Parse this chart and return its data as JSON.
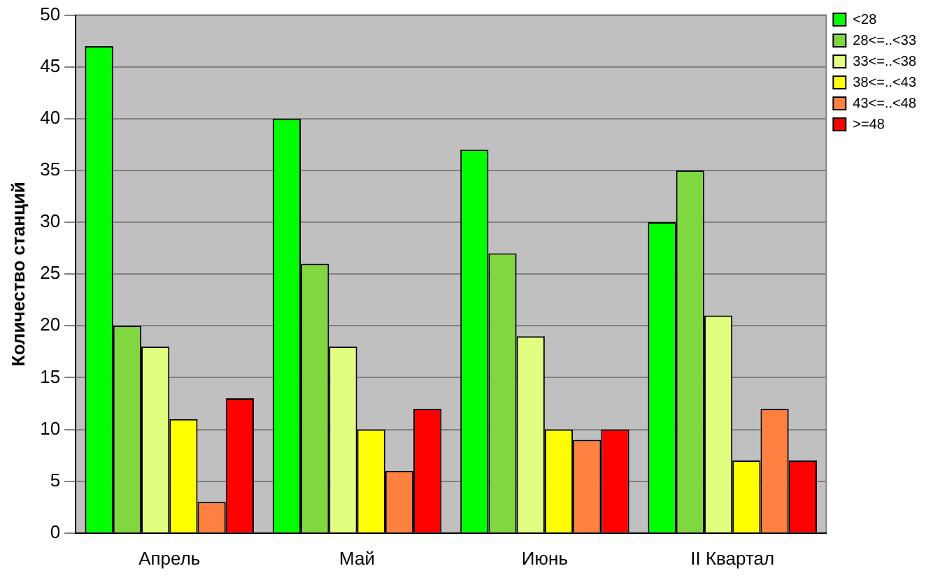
{
  "chart_data": {
    "type": "bar",
    "ylabel": "Количество станций",
    "categories": [
      "Апрель",
      "Май",
      "Июнь",
      "II Квартал"
    ],
    "series": [
      {
        "name": "<28",
        "color": "#00ff00",
        "values": [
          47,
          40,
          37,
          30
        ]
      },
      {
        "name": "28<=..<33",
        "color": "#80d840",
        "values": [
          20,
          26,
          27,
          35
        ]
      },
      {
        "name": "33<=..<38",
        "color": "#e0ff80",
        "values": [
          18,
          18,
          19,
          21
        ]
      },
      {
        "name": "38<=..<43",
        "color": "#ffff00",
        "values": [
          11,
          10,
          10,
          7
        ]
      },
      {
        "name": "43<=..<48",
        "color": "#ff8040",
        "values": [
          3,
          6,
          9,
          12
        ]
      },
      {
        "name": ">=48",
        "color": "#ff0000",
        "values": [
          13,
          12,
          10,
          7
        ]
      }
    ],
    "ylim": [
      0,
      50
    ],
    "yticks": [
      0,
      5,
      10,
      15,
      20,
      25,
      30,
      35,
      40,
      45,
      50
    ],
    "grid": "y",
    "legend": "top right"
  }
}
